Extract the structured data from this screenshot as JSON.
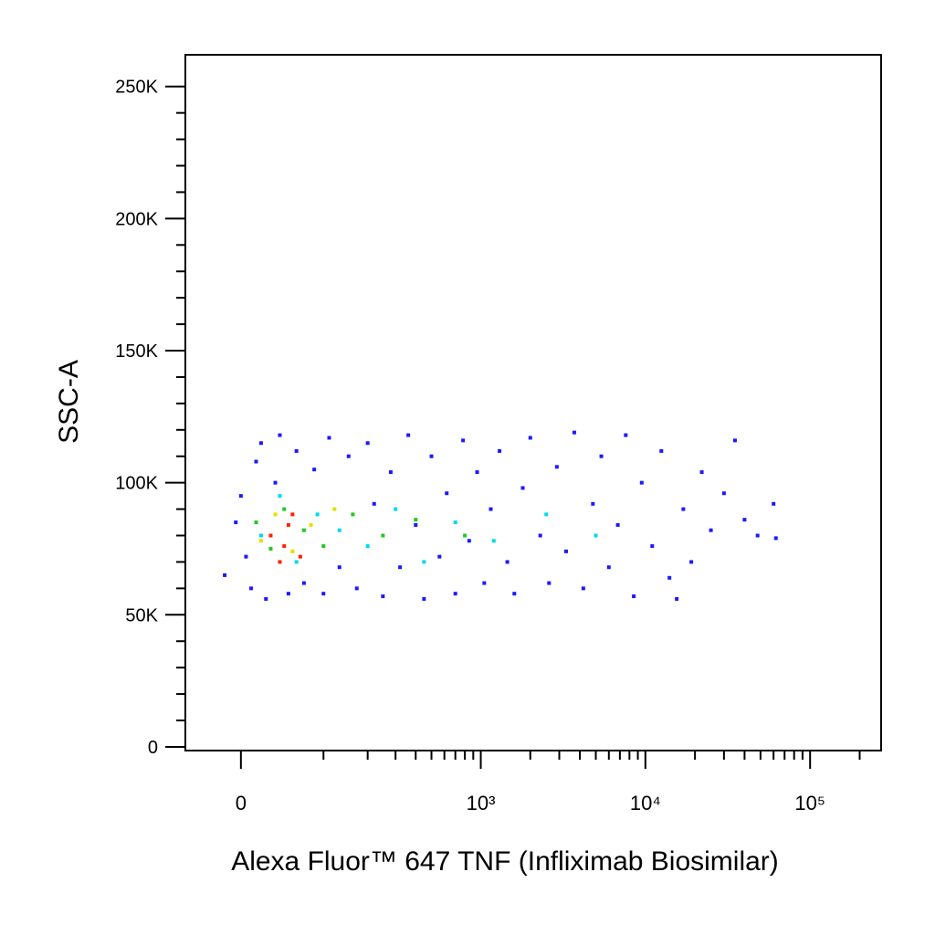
{
  "chart_data": {
    "type": "scatter",
    "x_label": "Alexa Fluor™ 647 TNF (Infliximab Biosimilar)",
    "y_label": "SSC-A",
    "xscale": "biexponential",
    "xlim": [
      -60,
      270000
    ],
    "ylim": [
      -1400,
      262000
    ],
    "xticks": [
      0,
      {
        "value": 1000,
        "label": "10³"
      },
      {
        "value": 10000,
        "label": "10⁴"
      },
      {
        "value": 100000,
        "label": "10⁵"
      }
    ],
    "xminorticks": [
      100,
      200,
      300,
      400,
      500,
      600,
      700,
      800,
      900,
      2000,
      3000,
      4000,
      5000,
      6000,
      7000,
      8000,
      9000,
      20000,
      30000,
      40000,
      50000,
      60000,
      70000,
      80000,
      90000,
      200000
    ],
    "yticks": [
      0,
      {
        "value": 50000,
        "label": "50K"
      },
      {
        "value": 100000,
        "label": "100K"
      },
      {
        "value": 150000,
        "label": "150K"
      },
      {
        "value": 200000,
        "label": "200K"
      },
      {
        "value": 250000,
        "label": "250K"
      }
    ],
    "yminorticks": [
      10000,
      20000,
      30000,
      40000,
      60000,
      70000,
      80000,
      90000,
      110000,
      120000,
      130000,
      140000,
      160000,
      170000,
      180000,
      190000,
      210000,
      220000,
      230000,
      240000
    ],
    "series": [
      {
        "color": "#1a1aff",
        "x": [
          -16,
          -5,
          0,
          5,
          10,
          15,
          20,
          25,
          35,
          40,
          50,
          60,
          70,
          85,
          100,
          110,
          130,
          150,
          170,
          200,
          220,
          250,
          280,
          320,
          360,
          400,
          450,
          500,
          560,
          620,
          700,
          780,
          850,
          950,
          1050,
          1150,
          1300,
          1450,
          1600,
          1800,
          2000,
          2300,
          2600,
          2900,
          3300,
          3700,
          4200,
          4800,
          5400,
          6000,
          6800,
          7600,
          8500,
          9500,
          11000,
          12500,
          14000,
          15500,
          17000,
          19000,
          22000,
          25000,
          30000,
          35000,
          40000,
          48000,
          60000,
          62000
        ],
        "values": [
          65000,
          85000,
          95000,
          72000,
          60000,
          108000,
          115000,
          56000,
          100000,
          118000,
          58000,
          112000,
          62000,
          105000,
          58000,
          117000,
          68000,
          110000,
          60000,
          115000,
          92000,
          57000,
          104000,
          68000,
          118000,
          84000,
          56000,
          110000,
          72000,
          96000,
          58000,
          116000,
          78000,
          104000,
          62000,
          90000,
          112000,
          70000,
          58000,
          98000,
          117000,
          80000,
          62000,
          106000,
          74000,
          119000,
          60000,
          92000,
          110000,
          68000,
          84000,
          118000,
          57000,
          100000,
          76000,
          112000,
          64000,
          56000,
          90000,
          70000,
          104000,
          82000,
          96000,
          116000,
          86000,
          80000,
          92000,
          79000
        ]
      },
      {
        "color": "#00d8f0",
        "x": [
          20,
          40,
          60,
          90,
          130,
          200,
          300,
          450,
          700,
          1200,
          2500,
          5000
        ],
        "values": [
          80000,
          95000,
          70000,
          88000,
          82000,
          76000,
          90000,
          70000,
          85000,
          78000,
          88000,
          80000
        ]
      },
      {
        "color": "#22c822",
        "x": [
          15,
          30,
          45,
          70,
          100,
          160,
          250,
          400,
          800
        ],
        "values": [
          85000,
          75000,
          90000,
          82000,
          76000,
          88000,
          80000,
          86000,
          80000
        ]
      },
      {
        "color": "#e0e000",
        "x": [
          20,
          35,
          55,
          80,
          120
        ],
        "values": [
          78000,
          88000,
          74000,
          84000,
          90000
        ]
      },
      {
        "color": "#ff2000",
        "x": [
          30,
          45,
          50,
          65,
          40,
          55
        ],
        "values": [
          80000,
          76000,
          84000,
          72000,
          70000,
          88000
        ]
      }
    ]
  }
}
